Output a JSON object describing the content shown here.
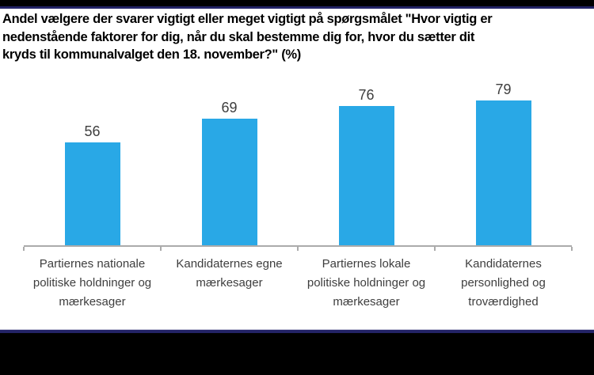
{
  "page": {
    "background": "#ffffff",
    "top_bar_color": "#000000",
    "accent_line_color": "#232366",
    "bottom_bar_color": "#000000"
  },
  "chart_data": {
    "type": "bar",
    "title": "Andel vælgere der svarer vigtigt eller meget vigtigt på spørgsmålet \"Hvor vigtig er nedenstående faktorer for dig, når du skal bestemme dig for, hvor du sætter dit kryds til kommunalvalget den 18. november?\" (%)",
    "title_lines": [
      "Andel vælgere der svarer vigtigt eller meget vigtigt på spørgsmålet \"Hvor vigtig er",
      "nedenstående faktorer for dig, når du skal bestemme dig for, hvor du sætter dit",
      "kryds til kommunalvalget den 18. november?\" (%)"
    ],
    "categories": [
      "Partiernes nationale politiske holdninger og mærkesager",
      "Kandidaternes egne mærkesager",
      "Partiernes lokale politiske holdninger og mærkesager",
      "Kandidaternes personlighed og troværdighed"
    ],
    "values": [
      56,
      69,
      76,
      79
    ],
    "value_labels_shown": true,
    "bar_color": "#29A8E6",
    "axis_color": "#ABABAB",
    "text_color": "#3E3E3E",
    "xlabel": "",
    "ylabel": "",
    "ylim": [
      0,
      90
    ],
    "grid": false,
    "legend": false
  }
}
